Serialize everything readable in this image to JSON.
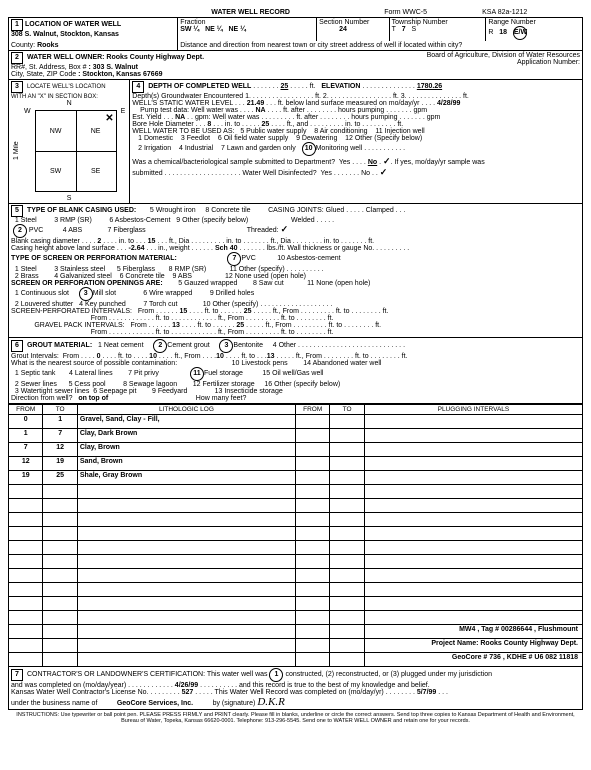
{
  "hdr": {
    "title": "WATER WELL RECORD",
    "form": "Form WWC-5",
    "ksa": "KSA 82a-1212"
  },
  "loc": {
    "label": "LOCATION OF WATER WELL",
    "addr": "308 S. Walnut, Stockton, Kansas",
    "county_l": "County:",
    "county": "Rooks",
    "frac": "Fraction",
    "f1": "SW ¼",
    "f2": "NE ¼",
    "f3": "NE ¼",
    "secnum_l": "Section Number",
    "secnum": "24",
    "twp_l": "Township Number",
    "twp_t": "T",
    "twp_n": "7",
    "twp_s": "S",
    "rng_l": "Range Number",
    "rng_r": "R",
    "rng_n": "18",
    "rng_ew": "E/W",
    "dist_l": "Distance and direction from nearest town or city street address of well if located within city?"
  },
  "own": {
    "label": "WATER WELL OWNER:",
    "name": "Rooks County Highway Dept.",
    "rr_l": "RR#, St. Address, Box #",
    "rr": ": 303 S. Walnut",
    "city_l": "City, State, ZIP Code",
    "city": ": Stockton, Kansas 67669",
    "board": "Board of Agriculture, Division of Water Resources",
    "app_l": "Application Number:"
  },
  "locate": {
    "label": "LOCATE WELL'S LOCATION\nWITH AN \"X\" IN SECTION BOX:",
    "n": "N",
    "s": "S",
    "e": "E",
    "w": "W",
    "nw": "NW",
    "ne": "NE",
    "sw": "SW",
    "se": "SE",
    "mile": "1 Mile"
  },
  "depth": {
    "label": "DEPTH OF COMPLETED WELL",
    "d": "25",
    "ft": "ft.",
    "elev_l": "ELEVATION",
    "elev": "1780.26",
    "gw": "Depth(s) Groundwater Encountered 1.",
    "gw_ft": "ft. 2.",
    "gw_ft2": "ft. 3.",
    "gw_ft3": "ft.",
    "static": "WELL'S STATIC WATER LEVEL",
    "static_v": "21.49",
    "static_txt": "ft. below land surface measured on mo/day/yr",
    "static_date": "4/28/99",
    "pump": "Pump test data: Well water was",
    "pump_na": "NA",
    "pump_aft": "ft. after",
    "pump_hrs": "hours pumping",
    "pump_gpm": "gpm",
    "est": "Est. Yield",
    "est_na": "NA",
    "est_gpm": "gpm: Well water was",
    "est_aft": "ft. after",
    "est_hrs": "hours pumping",
    "est_g": "gpm",
    "bore": "Bore Hole Diameter",
    "bore_d1": "8",
    "bore_in": "in. to",
    "bore_d2": "25",
    "bore_ft": "ft., and",
    "bore_ft2": "in. to",
    "bore_ft3": "ft.",
    "use": "WELL WATER TO BE USED AS:",
    "u5": "5 Public water supply",
    "u8": "8 Air conditioning",
    "u11": "11 Injection well",
    "u1": "1 Domestic",
    "u3": "3 Feedlot",
    "u6": "6 Oil field water supply",
    "u9": "9 Dewatering",
    "u12": "12 Other (Specify below)",
    "u2": "2 Irrigation",
    "u4": "4 Industrial",
    "u7": "7 Lawn and garden only",
    "u10": "Monitoring well",
    "chem": "Was a chemical/bacteriological sample submitted to Department?",
    "chem_y": "Yes",
    "chem_n": "No",
    "chem_date": "If yes, mo/day/yr sample was",
    "sub": "submitted",
    "disinf": "Water Well Disinfected?",
    "dy": "Yes",
    "dn": "No"
  },
  "casing": {
    "label": "TYPE OF BLANK CASING USED:",
    "c1": "1 Steel",
    "c3": "3 RMP (SR)",
    "c5": "5 Wrought iron",
    "c8": "8 Concrete tile",
    "joints": "CASING JOINTS: Glued",
    "clamp": "Clamped",
    "c2": "PVC",
    "c4": "4 ABS",
    "c6": "6 Asbestos-Cement",
    "c9": "9 Other (specify below)",
    "weld": "Welded",
    "c7": "7 Fiberglass",
    "thread": "Threaded:",
    "dia": "Blank casing diameter",
    "dia_v": "2",
    "dia_in": "in. to",
    "dia_v2": "15",
    "dia_ft": "ft., Dia",
    "dia_in2": "in. to",
    "dia_ft2": "ft., Dia",
    "dia_in3": "in. to",
    "dia_ft3": "ft.",
    "ht": "Casing height above land surface",
    "ht_v": "-2.64",
    "ht_in": "in., weight",
    "ht_sch": "Sch 40",
    "ht_lbs": "lbs./ft. Wall thickness or gauge No."
  },
  "screen": {
    "label": "TYPE OF SCREEN OR PERFORATION MATERIAL:",
    "s1": "1 Steel",
    "s3": "3 Stainless steel",
    "s5": "5 Fiberglass",
    "s7": "PVC",
    "s8": "8 RMP (SR)",
    "s10": "10 Asbestos-cement",
    "s11": "11 Other (specify)",
    "s2": "2 Brass",
    "s4": "4 Galvanized steel",
    "s6": "6 Concrete tile",
    "s9": "9 ABS",
    "s12": "12 None used (open hole)",
    "open": "SCREEN OR PERFORATION OPENINGS ARE:",
    "o5": "5 Gauzed wrapped",
    "o8": "8 Saw cut",
    "o11": "11 None (open hole)",
    "o1": "1 Continuous slot",
    "o3": "Mill slot",
    "o6": "6 Wire wrapped",
    "o9": "9 Drilled holes",
    "o2": "2 Louvered shutter",
    "o4": "4 Key punched",
    "o7": "7 Torch cut",
    "o10": "10 Other (specify)",
    "sp": "SCREEN-PERFORATED INTERVALS:",
    "sp_from": "From",
    "sp_v1": "15",
    "sp_to": "ft. to",
    "sp_v2": "25",
    "sp_fr2": "ft., From",
    "sp_ft": "ft. to",
    "sp_ft2": "ft.",
    "gp": "GRAVEL PACK INTERVALS:",
    "gp_v1": "13",
    "gp_v2": "25"
  },
  "grout": {
    "label": "GROUT MATERIAL:",
    "g1": "1 Neat cement",
    "g2": "Cement grout",
    "g3": "Bentonite",
    "g4": "4 Other",
    "int": "Grout Intervals:",
    "gf": "From",
    "gv1": "0",
    "gt": "ft. to",
    "gv2": "10",
    "gv3": "10",
    "gv4": "13",
    "contam": "What is the nearest source of possible contamination:",
    "c10": "10 Livestock pens",
    "c14": "14 Abandoned water well",
    "c1": "1 Septic tank",
    "c4": "4 Lateral lines",
    "c7": "7 Pit privy",
    "c11": "Fuel storage",
    "c15": "15 Oil well/Gas well",
    "c2": "2 Sewer lines",
    "c5": "5 Cess pool",
    "c8": "8 Sewage lagoon",
    "c12": "12 Fertilizer storage",
    "c16": "16 Other (specify below)",
    "c3": "3 Watertight sewer lines",
    "c6": "6 Seepage pit",
    "c9": "9 Feedyard",
    "c13": "13 Insecticide storage",
    "dir": "Direction from well?",
    "dir_v": "on top of",
    "how": "How many feet?"
  },
  "log": {
    "h_from": "FROM",
    "h_to": "TO",
    "h_lith": "LITHOLOGIC LOG",
    "h_from2": "FROM",
    "h_to2": "TO",
    "h_plug": "PLUGGING INTERVALS",
    "rows": [
      {
        "from": "0",
        "to": "1",
        "lith": "Gravel, Sand, Clay - Fill,"
      },
      {
        "from": "1",
        "to": "7",
        "lith": "Clay, Dark Brown"
      },
      {
        "from": "7",
        "to": "12",
        "lith": "Clay, Brown"
      },
      {
        "from": "12",
        "to": "19",
        "lith": "Sand, Brown"
      },
      {
        "from": "19",
        "to": "25",
        "lith": "Shale, Gray Brown"
      }
    ],
    "mw4": "MW4 , Tag # 00286644 , Flushmount",
    "proj": "Project Name: Rooks County Highway Dept.",
    "geo": "GeoCore # 736 , KDHE # U6 082 11818"
  },
  "cert": {
    "label": "CONTRACTOR'S OR LANDOWNER'S CERTIFICATION: This water well was",
    "c1": "constructed, (2) reconstructed, or (3) plugged under my jurisdiction",
    "comp": "and was completed on (mo/day/year)",
    "date": "4/26/99",
    "rec": "and this record is true to the best of my knowledge and belief.",
    "lic": "Kansas Water Well Contractor's License No.",
    "lic_n": "527",
    "this": "This Water Well Record was completed on (mo/day/yr)",
    "compdate": "5/7/99",
    "under": "under the business name of",
    "biz": "GeoCore Services, Inc.",
    "sig": "by (signature)"
  },
  "instr": "INSTRUCTIONS: Use typewriter or ball point pen. PLEASE PRESS FIRMLY and PRINT clearly. Please fill in blanks, underline or circle the correct answers. Send top three copies to Kansas Department of Health and Environment, Bureau of Water, Topeka, Kansas 66620-0001. Telephone: 913-296-5545. Send one to WATER WELL OWNER and retain one for your records."
}
